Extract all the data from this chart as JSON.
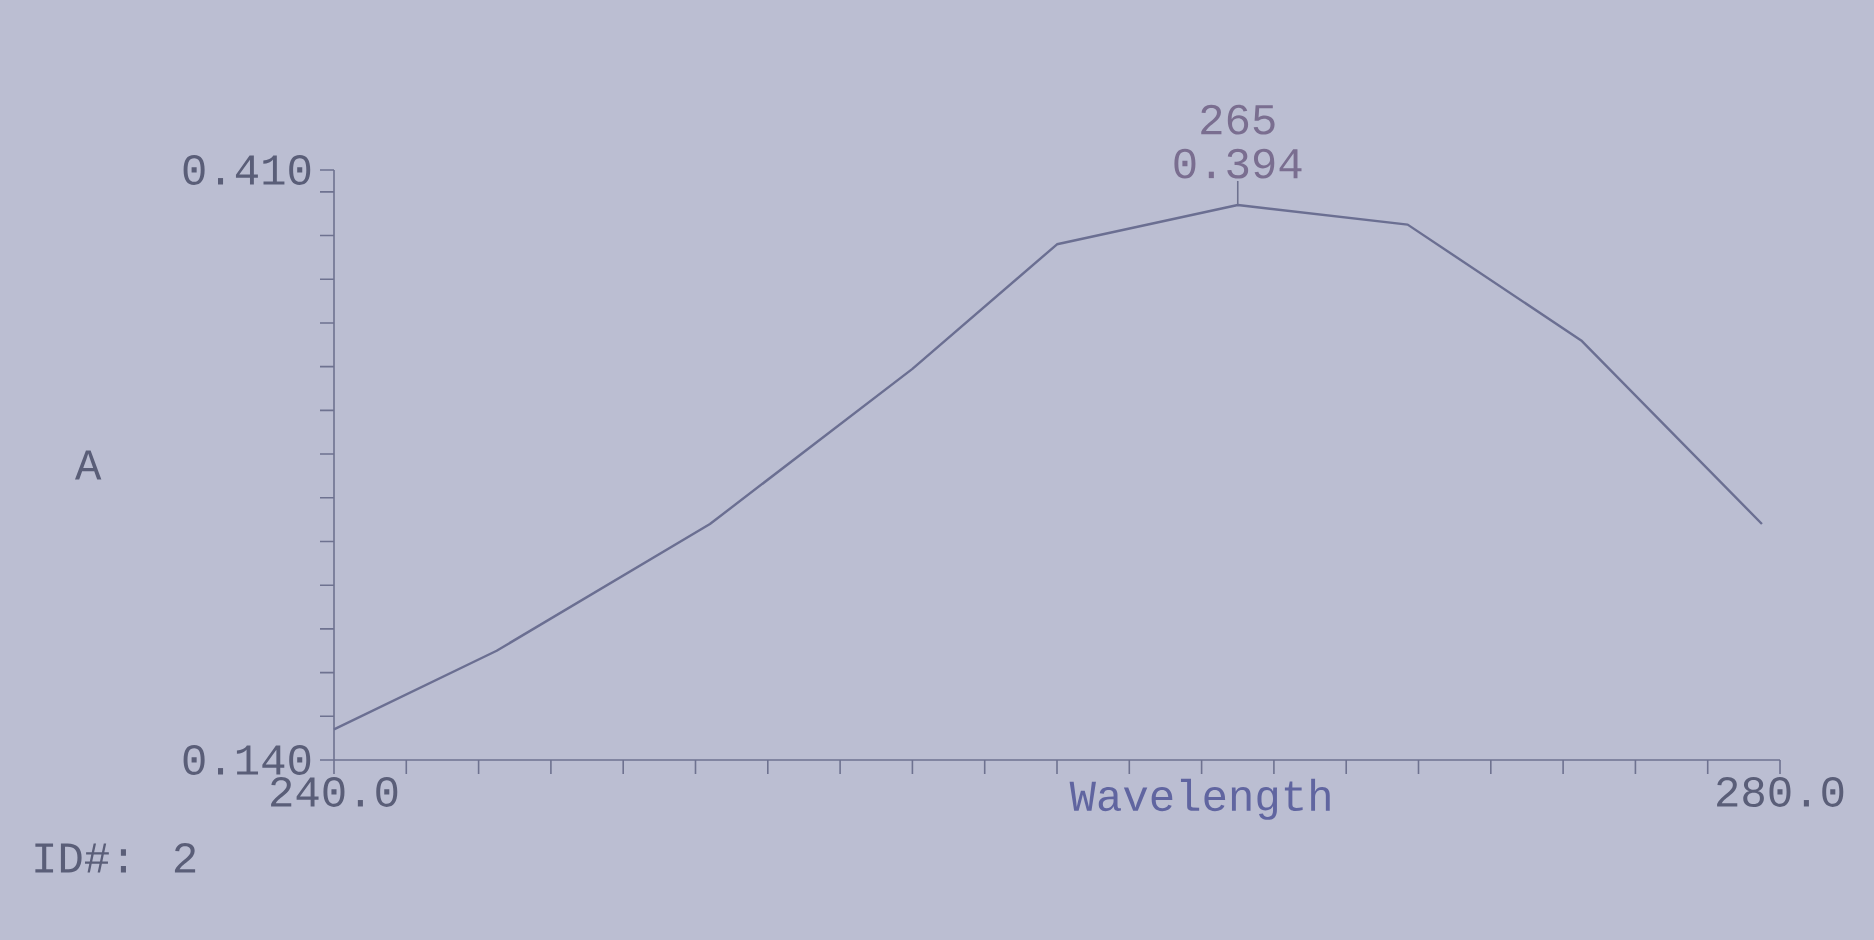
{
  "chart_data": {
    "type": "line",
    "xlabel": "Wavelength",
    "ylabel": "A",
    "x": [
      240,
      244.5,
      250.4,
      256,
      260,
      265,
      269.7,
      274.5,
      279.5
    ],
    "series": [
      {
        "color": "#6b6f92",
        "values": [
          0.154,
          0.19,
          0.248,
          0.319,
          0.376,
          0.394,
          0.385,
          0.332,
          0.248
        ]
      }
    ],
    "xlim": [
      240,
      280
    ],
    "ylim": [
      0.14,
      0.41
    ],
    "xticks": [
      {
        "value": 240,
        "label": "240.0"
      },
      {
        "value": 242,
        "label": null
      },
      {
        "value": 244,
        "label": null
      },
      {
        "value": 246,
        "label": null
      },
      {
        "value": 248,
        "label": null
      },
      {
        "value": 250,
        "label": null
      },
      {
        "value": 252,
        "label": null
      },
      {
        "value": 254,
        "label": null
      },
      {
        "value": 256,
        "label": null
      },
      {
        "value": 258,
        "label": null
      },
      {
        "value": 260,
        "label": null
      },
      {
        "value": 262,
        "label": null
      },
      {
        "value": 264,
        "label": null
      },
      {
        "value": 266,
        "label": null
      },
      {
        "value": 268,
        "label": null
      },
      {
        "value": 270,
        "label": null
      },
      {
        "value": 272,
        "label": null
      },
      {
        "value": 274,
        "label": null
      },
      {
        "value": 276,
        "label": null
      },
      {
        "value": 278,
        "label": null
      },
      {
        "value": 280,
        "label": "280.0"
      }
    ],
    "yticks": [
      {
        "value": 0.14,
        "label": "0.140"
      },
      {
        "value": 0.16,
        "label": null
      },
      {
        "value": 0.18,
        "label": null
      },
      {
        "value": 0.2,
        "label": null
      },
      {
        "value": 0.22,
        "label": null
      },
      {
        "value": 0.24,
        "label": null
      },
      {
        "value": 0.26,
        "label": null
      },
      {
        "value": 0.28,
        "label": null
      },
      {
        "value": 0.3,
        "label": null
      },
      {
        "value": 0.32,
        "label": null
      },
      {
        "value": 0.34,
        "label": null
      },
      {
        "value": 0.36,
        "label": null
      },
      {
        "value": 0.38,
        "label": null
      },
      {
        "value": 0.4,
        "label": null
      },
      {
        "value": 0.41,
        "label": "0.410"
      }
    ],
    "grid": false,
    "marker": "none",
    "line_style": "solid",
    "annotations": [
      {
        "text": "265",
        "x": 265,
        "y": 0.394
      },
      {
        "text": "0.394",
        "x": 265,
        "y": 0.394
      },
      "ID#: 2"
    ]
  }
}
